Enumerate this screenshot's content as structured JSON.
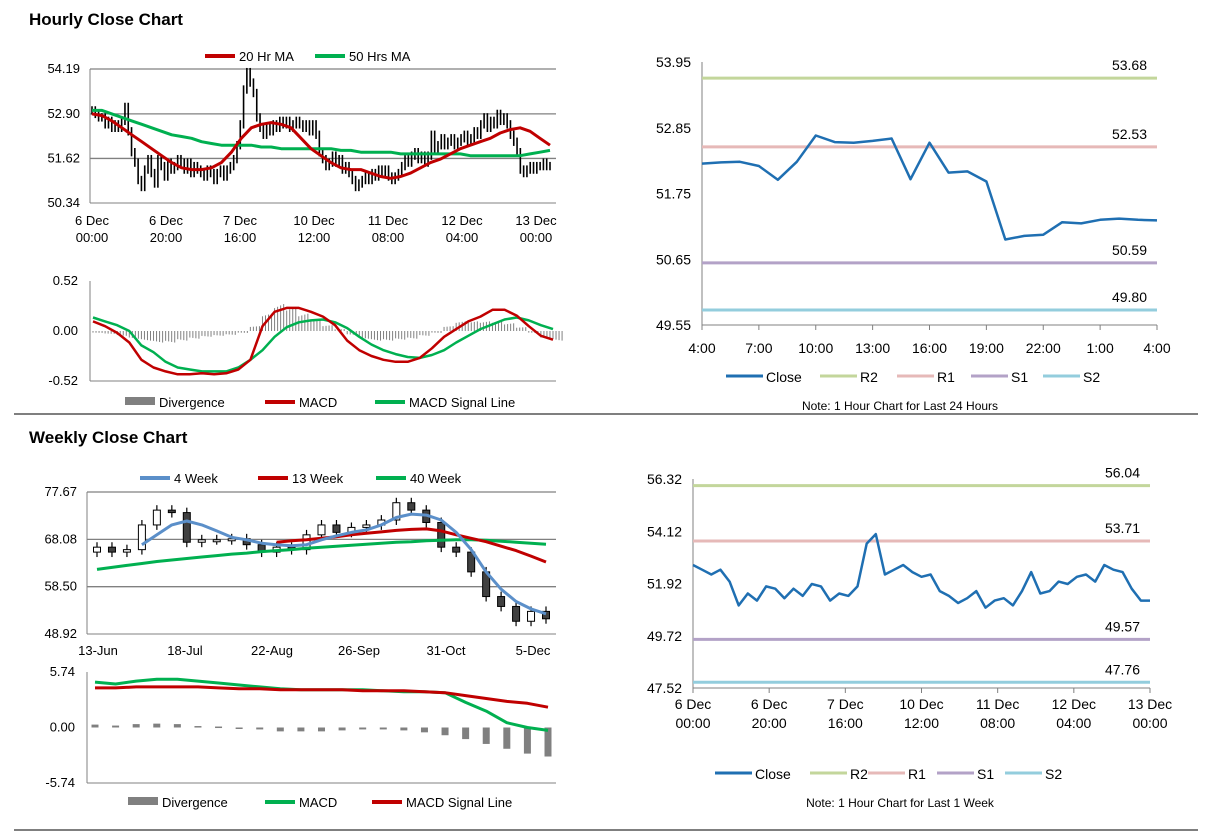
{
  "sections": {
    "hourly_title": "Hourly Close Chart",
    "weekly_title": "Weekly Close Chart"
  },
  "colors": {
    "black": "#000000",
    "ma_red": "#c00000",
    "ma_green": "#00b050",
    "ma_blue": "#5b8fc9",
    "close_blue": "#1f6fb2",
    "r2": "#c3d69b",
    "r1": "#e6b9b8",
    "s1": "#b3a2c7",
    "s2": "#93cddd",
    "divergence": "#808080",
    "grid": "#808080"
  },
  "chart_data": [
    {
      "id": "hourly_candles",
      "type": "line",
      "legend": [
        "20 Hr MA",
        "50 Hrs MA"
      ],
      "y_ticks": [
        "54.19",
        "52.90",
        "51.62",
        "50.34"
      ],
      "ylim": [
        50.34,
        54.19
      ],
      "x_ticks": [
        [
          "6 Dec",
          "00:00"
        ],
        [
          "6 Dec",
          "20:00"
        ],
        [
          "7 Dec",
          "16:00"
        ],
        [
          "10 Dec",
          "12:00"
        ],
        [
          "11 Dec",
          "08:00"
        ],
        [
          "12 Dec",
          "04:00"
        ],
        [
          "13 Dec",
          "00:00"
        ]
      ],
      "n": 140,
      "close": [
        53.0,
        52.9,
        52.8,
        52.8,
        52.6,
        52.7,
        52.5,
        52.6,
        52.5,
        52.7,
        53.1,
        52.4,
        51.8,
        51.5,
        51.0,
        50.8,
        51.3,
        51.6,
        51.2,
        50.9,
        51.6,
        51.4,
        51.1,
        51.5,
        51.3,
        51.4,
        51.6,
        51.5,
        51.3,
        51.5,
        51.2,
        51.4,
        51.3,
        51.2,
        51.1,
        51.3,
        51.2,
        51.0,
        51.2,
        51.3,
        51.1,
        51.3,
        51.4,
        51.6,
        52.0,
        52.6,
        53.6,
        54.1,
        53.8,
        53.5,
        52.8,
        52.5,
        52.3,
        52.5,
        52.4,
        52.6,
        52.5,
        52.7,
        52.6,
        52.7,
        52.5,
        52.6,
        52.7,
        52.6,
        52.5,
        52.6,
        52.4,
        52.6,
        52.3,
        51.8,
        51.6,
        51.4,
        51.5,
        51.7,
        51.5,
        51.6,
        51.3,
        51.4,
        51.2,
        51.0,
        50.8,
        50.9,
        51.0,
        51.1,
        51.0,
        51.2,
        51.1,
        51.3,
        51.2,
        51.3,
        51.1,
        51.0,
        51.1,
        51.2,
        51.4,
        51.6,
        51.5,
        51.7,
        51.8,
        51.6,
        51.7,
        51.5,
        51.7,
        52.3,
        51.9,
        52.0,
        52.2,
        52.0,
        52.1,
        52.2,
        52.0,
        52.1,
        52.2,
        52.3,
        52.1,
        52.2,
        52.4,
        52.3,
        52.6,
        52.8,
        52.5,
        52.7,
        52.6,
        52.9,
        52.7,
        52.8,
        52.6,
        52.3,
        52.1,
        51.8,
        51.3,
        51.2,
        51.3,
        51.4,
        51.3,
        51.4,
        51.4,
        51.5,
        51.4,
        51.4
      ],
      "ma20": [
        52.9,
        52.85,
        52.7,
        52.5,
        52.3,
        52.1,
        51.9,
        51.7,
        51.5,
        51.35,
        51.3,
        51.3,
        51.35,
        51.5,
        51.8,
        52.2,
        52.5,
        52.6,
        52.65,
        52.6,
        52.5,
        52.2,
        51.9,
        51.7,
        51.5,
        51.35,
        51.3,
        51.3,
        51.2,
        51.1,
        51.05,
        51.1,
        51.2,
        51.35,
        51.5,
        51.6,
        51.75,
        51.9,
        52.0,
        52.1,
        52.2,
        52.35,
        52.45,
        52.5,
        52.4,
        52.2,
        52.0
      ],
      "ma50": [
        53.0,
        53.0,
        52.9,
        52.8,
        52.7,
        52.6,
        52.5,
        52.4,
        52.3,
        52.25,
        52.2,
        52.1,
        52.05,
        52.0,
        52.0,
        52.0,
        52.0,
        51.95,
        51.95,
        51.9,
        51.9,
        51.9,
        51.9,
        51.9,
        51.9,
        51.85,
        51.85,
        51.8,
        51.8,
        51.8,
        51.8,
        51.75,
        51.75,
        51.75,
        51.75,
        51.75,
        51.75,
        51.75,
        51.7,
        51.7,
        51.7,
        51.7,
        51.7,
        51.7,
        51.75,
        51.8,
        51.85
      ]
    },
    {
      "id": "hourly_macd",
      "type": "line",
      "legend": [
        "Divergence",
        "MACD",
        "MACD Signal Line"
      ],
      "y_ticks": [
        "0.52",
        "0.00",
        "-0.52"
      ],
      "ylim": [
        -0.52,
        0.52
      ],
      "macd": [
        0.1,
        0.05,
        -0.02,
        -0.12,
        -0.3,
        -0.38,
        -0.42,
        -0.45,
        -0.45,
        -0.44,
        -0.45,
        -0.44,
        -0.4,
        -0.3,
        0.05,
        0.2,
        0.24,
        0.24,
        0.2,
        0.15,
        0.06,
        -0.1,
        -0.2,
        -0.26,
        -0.3,
        -0.32,
        -0.32,
        -0.28,
        -0.18,
        -0.06,
        0.02,
        0.1,
        0.15,
        0.22,
        0.22,
        0.16,
        0.05,
        -0.05,
        -0.09
      ],
      "signal": [
        0.14,
        0.1,
        0.06,
        0.0,
        -0.15,
        -0.22,
        -0.32,
        -0.38,
        -0.4,
        -0.42,
        -0.42,
        -0.42,
        -0.38,
        -0.3,
        -0.2,
        -0.06,
        0.04,
        0.09,
        0.11,
        0.12,
        0.09,
        0.03,
        -0.06,
        -0.14,
        -0.2,
        -0.24,
        -0.27,
        -0.28,
        -0.25,
        -0.2,
        -0.12,
        -0.05,
        0.02,
        0.07,
        0.12,
        0.14,
        0.11,
        0.06,
        0.02
      ],
      "divergence": [
        -0.02,
        -0.03,
        -0.05,
        -0.08,
        -0.1,
        -0.12,
        -0.12,
        -0.1,
        -0.08,
        -0.06,
        -0.05,
        -0.04,
        -0.02,
        0.05,
        0.18,
        0.28,
        0.25,
        0.18,
        0.12,
        0.06,
        0.02,
        -0.04,
        -0.08,
        -0.1,
        -0.1,
        -0.09,
        -0.08,
        -0.05,
        -0.02,
        0.05,
        0.1,
        0.1,
        0.1,
        0.1,
        0.08,
        0.04,
        -0.02,
        -0.08,
        -0.1
      ]
    },
    {
      "id": "hourly_levels",
      "type": "line",
      "y_ticks": [
        "53.95",
        "52.85",
        "51.75",
        "50.65",
        "49.55"
      ],
      "ylim": [
        49.55,
        53.95
      ],
      "x_ticks": [
        "4:00",
        "7:00",
        "10:00",
        "13:00",
        "16:00",
        "19:00",
        "22:00",
        "1:00",
        "4:00"
      ],
      "close": [
        52.25,
        52.27,
        52.28,
        52.21,
        51.98,
        52.28,
        52.72,
        52.61,
        52.6,
        52.63,
        52.67,
        51.99,
        52.6,
        52.1,
        52.12,
        51.95,
        50.98,
        51.04,
        51.06,
        51.27,
        51.25,
        51.31,
        51.33,
        51.31,
        51.3
      ],
      "levels": {
        "R2": 53.68,
        "R1": 52.53,
        "S1": 50.59,
        "S2": 49.8
      },
      "level_labels": [
        "53.68",
        "52.53",
        "50.59",
        "49.80"
      ],
      "legend": [
        "Close",
        "R2",
        "R1",
        "S1",
        "S2"
      ],
      "note": "Note: 1 Hour Chart for Last 24 Hours"
    },
    {
      "id": "weekly_candles",
      "type": "line",
      "legend": [
        "4 Week",
        "13 Week",
        "40 Week"
      ],
      "y_ticks": [
        "77.67",
        "68.08",
        "58.50",
        "48.92"
      ],
      "ylim": [
        48.92,
        77.67
      ],
      "x_ticks": [
        "13-Jun",
        "18-Jul",
        "22-Aug",
        "26-Sep",
        "31-Oct",
        "5-Dec"
      ],
      "close": [
        66.5,
        65.5,
        66.0,
        71.0,
        74.0,
        73.5,
        67.5,
        68.0,
        68.0,
        68.2,
        67.0,
        65.5,
        66.5,
        66.0,
        69.0,
        71.0,
        69.5,
        70.5,
        71.0,
        72.0,
        75.5,
        74.0,
        71.5,
        66.5,
        65.5,
        61.5,
        56.5,
        54.5,
        51.5,
        53.5,
        52.0
      ],
      "ma4": [
        null,
        null,
        null,
        67.0,
        69.0,
        71.0,
        71.8,
        71.0,
        69.8,
        68.5,
        68.0,
        67.3,
        67.0,
        66.8,
        67.0,
        68.0,
        68.8,
        69.5,
        70.0,
        71.0,
        72.5,
        73.2,
        73.0,
        72.0,
        69.5,
        66.0,
        61.5,
        58.0,
        55.5,
        54.0,
        53.0
      ],
      "ma13": [
        null,
        null,
        null,
        null,
        null,
        null,
        null,
        null,
        null,
        null,
        null,
        null,
        67.5,
        67.8,
        68.0,
        68.3,
        68.6,
        69.0,
        69.3,
        69.6,
        69.9,
        70.1,
        70.2,
        69.8,
        69.0,
        68.3,
        67.6,
        66.7,
        65.8,
        64.7,
        63.5
      ],
      "ma40": [
        62.0,
        62.4,
        62.8,
        63.2,
        63.6,
        63.9,
        64.2,
        64.5,
        64.8,
        65.1,
        65.3,
        65.6,
        65.8,
        66.0,
        66.3,
        66.5,
        66.7,
        66.9,
        67.1,
        67.3,
        67.5,
        67.6,
        67.8,
        67.9,
        68.0,
        68.0,
        67.9,
        67.7,
        67.5,
        67.3,
        67.1
      ]
    },
    {
      "id": "weekly_macd",
      "type": "line",
      "legend": [
        "Divergence",
        "MACD",
        "MACD Signal Line"
      ],
      "y_ticks": [
        "5.74",
        "0.00",
        "-5.74"
      ],
      "ylim": [
        -5.74,
        5.74
      ],
      "macd": [
        4.7,
        4.5,
        4.8,
        5.0,
        5.0,
        4.8,
        4.6,
        4.4,
        4.2,
        4.0,
        3.9,
        3.9,
        3.9,
        3.9,
        3.8,
        3.7,
        3.7,
        3.6,
        2.6,
        1.7,
        0.5,
        0.0,
        -0.3
      ],
      "signal": [
        4.1,
        4.1,
        4.2,
        4.2,
        4.2,
        4.2,
        4.1,
        4.0,
        4.0,
        3.9,
        3.9,
        3.9,
        3.9,
        3.8,
        3.8,
        3.8,
        3.7,
        3.6,
        3.3,
        3.0,
        2.7,
        2.5,
        2.1
      ],
      "divergence": [
        0.3,
        0.2,
        0.35,
        0.4,
        0.35,
        0.15,
        0.1,
        0.0,
        -0.2,
        -0.4,
        -0.4,
        -0.4,
        -0.3,
        -0.2,
        -0.2,
        -0.3,
        -0.5,
        -0.8,
        -1.2,
        -1.7,
        -2.2,
        -2.7,
        -3.0
      ]
    },
    {
      "id": "weekly_levels",
      "type": "line",
      "y_ticks": [
        "56.32",
        "54.12",
        "51.92",
        "49.72",
        "47.52"
      ],
      "ylim": [
        47.52,
        56.32
      ],
      "x_ticks": [
        [
          "6 Dec",
          "00:00"
        ],
        [
          "6 Dec",
          "20:00"
        ],
        [
          "7 Dec",
          "16:00"
        ],
        [
          "10 Dec",
          "12:00"
        ],
        [
          "11 Dec",
          "08:00"
        ],
        [
          "12 Dec",
          "04:00"
        ],
        [
          "13 Dec",
          "00:00"
        ]
      ],
      "close": [
        52.7,
        52.5,
        52.3,
        52.5,
        52.0,
        51.0,
        51.5,
        51.2,
        51.8,
        51.7,
        51.3,
        51.7,
        51.4,
        51.9,
        51.8,
        51.2,
        51.5,
        51.4,
        51.8,
        53.6,
        54.0,
        52.3,
        52.5,
        52.7,
        52.4,
        52.2,
        52.3,
        51.6,
        51.4,
        51.1,
        51.3,
        51.6,
        50.9,
        51.2,
        51.3,
        51.0,
        51.6,
        52.4,
        51.5,
        51.6,
        52.0,
        51.9,
        52.2,
        52.3,
        52.0,
        52.7,
        52.5,
        52.4,
        51.7,
        51.2,
        51.2
      ],
      "levels": {
        "R2": 56.04,
        "R1": 53.71,
        "S1": 49.57,
        "S2": 47.76
      },
      "level_labels": [
        "56.04",
        "53.71",
        "49.57",
        "47.76"
      ],
      "legend": [
        "Close",
        "R2",
        "R1",
        "S1",
        "S2"
      ],
      "note": "Note: 1 Hour Chart for Last 1 Week"
    }
  ]
}
